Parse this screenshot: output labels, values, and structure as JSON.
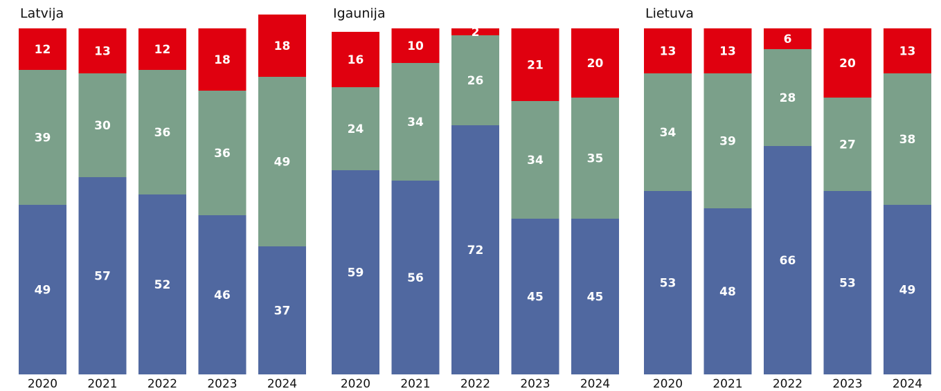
{
  "chart_data": [
    {
      "type": "bar",
      "stacked": true,
      "title": "Latvija",
      "categories": [
        "2020",
        "2021",
        "2022",
        "2023",
        "2024"
      ],
      "ylim": [
        0,
        100
      ],
      "series": [
        {
          "color": "#5068a0",
          "values": [
            49,
            57,
            52,
            46,
            37
          ]
        },
        {
          "color": "#7ba08a",
          "values": [
            39,
            30,
            36,
            36,
            49
          ]
        },
        {
          "color": "#e0000f",
          "values": [
            12,
            13,
            12,
            18,
            18
          ]
        }
      ]
    },
    {
      "type": "bar",
      "stacked": true,
      "title": "Igaunija",
      "categories": [
        "2020",
        "2021",
        "2022",
        "2023",
        "2024"
      ],
      "ylim": [
        0,
        100
      ],
      "series": [
        {
          "color": "#5068a0",
          "values": [
            59,
            56,
            72,
            45,
            45
          ]
        },
        {
          "color": "#7ba08a",
          "values": [
            24,
            34,
            26,
            34,
            35
          ]
        },
        {
          "color": "#e0000f",
          "values": [
            16,
            10,
            2,
            21,
            20
          ]
        }
      ]
    },
    {
      "type": "bar",
      "stacked": true,
      "title": "Lietuva",
      "categories": [
        "2020",
        "2021",
        "2022",
        "2023",
        "2024"
      ],
      "ylim": [
        0,
        100
      ],
      "series": [
        {
          "color": "#5068a0",
          "values": [
            53,
            48,
            66,
            53,
            49
          ]
        },
        {
          "color": "#7ba08a",
          "values": [
            34,
            39,
            28,
            27,
            38
          ]
        },
        {
          "color": "#e0000f",
          "values": [
            13,
            13,
            6,
            20,
            13
          ]
        }
      ]
    }
  ]
}
